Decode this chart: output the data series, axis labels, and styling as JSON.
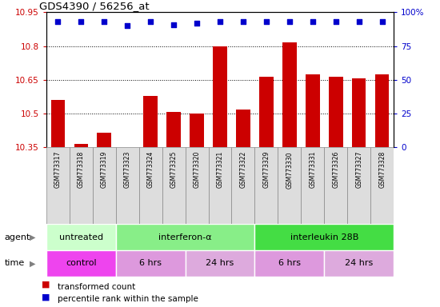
{
  "title": "GDS4390 / 56256_at",
  "samples": [
    "GSM773317",
    "GSM773318",
    "GSM773319",
    "GSM773323",
    "GSM773324",
    "GSM773325",
    "GSM773320",
    "GSM773321",
    "GSM773322",
    "GSM773329",
    "GSM773330",
    "GSM773331",
    "GSM773326",
    "GSM773327",
    "GSM773328"
  ],
  "bar_values": [
    10.56,
    10.365,
    10.415,
    10.352,
    10.578,
    10.507,
    10.5,
    10.8,
    10.518,
    10.665,
    10.816,
    10.675,
    10.665,
    10.655,
    10.675
  ],
  "percentile_values": [
    93,
    93,
    93,
    90,
    93,
    91,
    92,
    93,
    93,
    93,
    93,
    93,
    93,
    93,
    93
  ],
  "bar_color": "#cc0000",
  "dot_color": "#0000cc",
  "ymin": 10.35,
  "ymax": 10.95,
  "yticks": [
    10.35,
    10.5,
    10.65,
    10.8,
    10.95
  ],
  "y2min": 0,
  "y2max": 100,
  "y2ticks": [
    0,
    25,
    50,
    75,
    100
  ],
  "agent_groups": [
    {
      "text": "untreated",
      "cols": [
        0,
        1,
        2
      ],
      "color": "#ccffcc"
    },
    {
      "text": "interferon-α",
      "cols": [
        3,
        4,
        5,
        6,
        7,
        8
      ],
      "color": "#88ee88"
    },
    {
      "text": "interleukin 28B",
      "cols": [
        9,
        10,
        11,
        12,
        13,
        14
      ],
      "color": "#44dd44"
    }
  ],
  "time_groups": [
    {
      "text": "control",
      "cols": [
        0,
        1,
        2
      ],
      "color": "#ee44ee"
    },
    {
      "text": "6 hrs",
      "cols": [
        3,
        4,
        5
      ],
      "color": "#dd99dd"
    },
    {
      "text": "24 hrs",
      "cols": [
        6,
        7,
        8
      ],
      "color": "#dd99dd"
    },
    {
      "text": "6 hrs",
      "cols": [
        9,
        10,
        11
      ],
      "color": "#dd99dd"
    },
    {
      "text": "24 hrs",
      "cols": [
        12,
        13,
        14
      ],
      "color": "#dd99dd"
    }
  ],
  "legend_items": [
    {
      "label": "transformed count",
      "color": "#cc0000"
    },
    {
      "label": "percentile rank within the sample",
      "color": "#0000cc"
    }
  ],
  "background_color": "#ffffff",
  "sample_bg_color": "#dddddd",
  "sample_border_color": "#888888"
}
